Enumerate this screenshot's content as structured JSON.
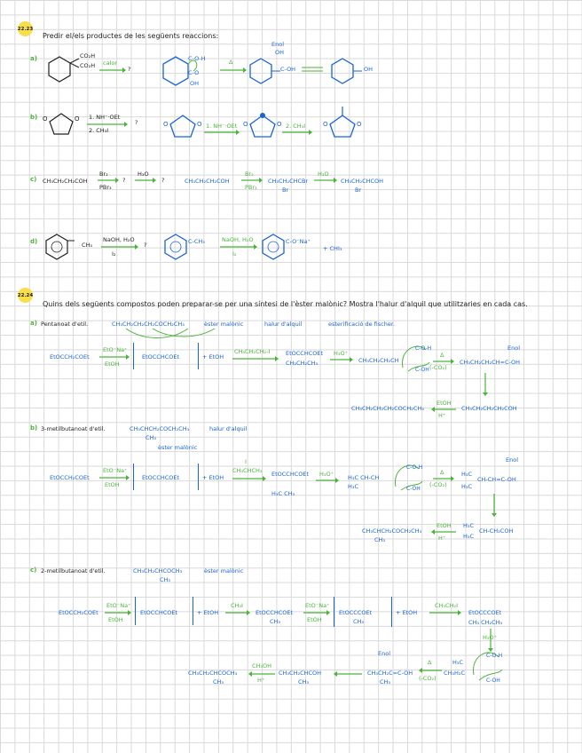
{
  "problems": [
    {
      "number": "22.23",
      "prompt": "Predir el/els productes de les següents reaccions:",
      "parts": [
        {
          "label": "a)",
          "question_left": "CO₂H",
          "question_left2": "CO₂H",
          "question_arrow": "calor",
          "q": "?",
          "answer_arrow": "Δ",
          "enol": "Enol",
          "oh": "OH",
          "c_oh": "C-OH",
          "c_o_h": "C-O-H",
          "c_o": "C-O",
          "oh_right": "OH"
        },
        {
          "label": "b)",
          "question_arrow_top": "1. NH⁻·OEt",
          "question_arrow_bottom": "2. CH₃I",
          "q": "?",
          "step1": "1. NH⁻·OEt",
          "step2": "2. CH₃I"
        },
        {
          "label": "c)",
          "question": "CH₃CH₂CH₂COH",
          "reagent_top": "Br₂",
          "reagent_bottom": "PBr₃",
          "q1": "?",
          "h3o": "H₃O",
          "q2": "?",
          "s1": "CH₃CH₂CH₂COH",
          "s2_top": "Br₂",
          "s2_bottom": "PBr₃",
          "s3": "CH₃CH₂CHCBr",
          "s3_br": "Br",
          "h3o_ans": "H₃O",
          "s4": "CH₃CH₂CHCOH",
          "s4_br": "Br"
        },
        {
          "label": "d)",
          "question_sub": "CH₃",
          "reagent_top": "NaOH, H₂O",
          "reagent_bottom": "I₂",
          "q": "?",
          "ans_sub": "C-CH₃",
          "ans_reagent_top": "NaOH, H₂O",
          "ans_reagent_bottom": "I₂",
          "ans_product": "C-O⁻Na⁺",
          "plus": "+ CHI₃"
        }
      ]
    },
    {
      "number": "22.24",
      "prompt": "Quins dels següents compostos poden preparar-se per una síntesi de l'èster malònic? Mostra l'halur d'alquil que utilitzaries en cada cas.",
      "parts": [
        {
          "label": "a)",
          "name": "Pentanoat d'etil.",
          "formula": "CH₃CH₂CH₂CH₂COCH₂CH₃",
          "tag1": "èster malònic",
          "tag2": "halur d'alquil",
          "tag3": "esterificació de fischer.",
          "r1": "EtOCCH₂COEt",
          "r1_reagent_top": "EtO⁻Na⁺",
          "r1_reagent_bottom": "EtOH",
          "enolate": "EtOCCHCOEt",
          "plus_etoh": "+ EtOH",
          "alkyl": "CH₃CH₂CH₂-I",
          "alkylated": "EtOCCHCOEt",
          "alkylated_sub": "CH₂CH₂CH₃",
          "h3o": "H₃O⁺",
          "diacid": "CH₃CH₂CH₂CH",
          "delta": "Δ",
          "co2": "(-CO₂)",
          "enol_label": "Enol",
          "enol": "CH₃CH₂CH₂CH=C-OH",
          "acid": "CH₃CH₂CH₂CH₂COH",
          "etoh_top": "EtOH",
          "etoh_bottom": "H⁺",
          "ester": "CH₃CH₂CH₂CH₂COCH₂CH₃"
        },
        {
          "label": "b)",
          "name": "3-metilbutanoat d'etil.",
          "formula": "CH₃CHCH₂COCH₂CH₃",
          "formula_sub": "CH₃",
          "tag1": "halur d'alquil",
          "tag2": "èster malònic",
          "r1": "EtOCCH₂COEt",
          "r1_reagent_top": "EtO⁻Na⁺",
          "r1_reagent_bottom": "EtOH",
          "enolate": "EtOCCHCOEt",
          "plus_etoh": "+ EtOH",
          "alkyl": "CH₃CHCH₃",
          "alkyl_i": "I",
          "alkylated": "EtOCCHCOEt",
          "alkylated_sub": "H₃C  CH₃",
          "h3o": "H₃O⁺",
          "diacid": "H₃C  CH-CH",
          "diacid2": "H₃C",
          "delta": "Δ",
          "co2": "(-CO₂)",
          "enol_label": "Enol",
          "enol": "CH-CH=C-OH",
          "acid": "CH-CH₂COH",
          "etoh_top": "EtOH",
          "etoh_bottom": "H⁺",
          "ester": "CH₃CHCH₂COCH₂CH₃",
          "ester_sub": "CH₃"
        },
        {
          "label": "c)",
          "name": "2-metilbutanoat d'etil.",
          "formula": "CH₃CH₂CHCOCH₃",
          "formula_sub": "CH₃",
          "tag1": "èster malònic",
          "r1": "EtOCCH₂COEt",
          "r1_reagent_top": "EtO⁻Na⁺",
          "r1_reagent_bottom": "EtOH",
          "enolate": "EtOCCHCOEt",
          "plus_etoh": "+ EtOH",
          "ch3i": "CH₃I",
          "methylated": "EtOCCHCOEt",
          "methylated_sub": "CH₃",
          "r2_reagent_top": "EtO⁻Na⁺",
          "r2_reagent_bottom": "EtOH",
          "enolate2": "EtOCCCOEt",
          "enolate2_sub": "CH₃",
          "plus_etoh2": "+ EtOH",
          "ch3ch2i": "CH₃CH₂I",
          "dialkyl": "EtOCCCOEt",
          "dialkyl_sub": "CH₃ CH₂CH₃",
          "h3o": "H₃O⁺",
          "diacid": "H₃C",
          "diacid2": "CH₃H₂C",
          "delta": "Δ",
          "co2": "(-CO₂)",
          "enol_label": "Enol",
          "enol": "CH₃CH₂C=C-OH",
          "enol_sub": "CH₃",
          "acid": "CH₃CH₂CHCOH",
          "acid_sub": "CH₃",
          "etoh_top": "CH₃OH",
          "etoh_bottom": "H⁺",
          "ester": "CH₃CH₂CHCOCH₃",
          "ester_sub": "CH₃"
        }
      ]
    }
  ],
  "colors": {
    "ink": "#222222",
    "blue": "#1a63d6",
    "green": "#4bb33a",
    "highlight": "#f7df4a"
  }
}
